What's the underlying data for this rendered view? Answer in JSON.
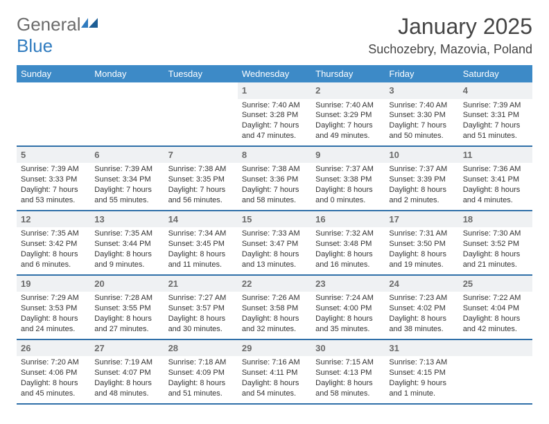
{
  "logo": {
    "general": "General",
    "blue": "Blue"
  },
  "title": "January 2025",
  "location": "Suchozebry, Mazovia, Poland",
  "colors": {
    "header_bg": "#3d8ac7",
    "header_fg": "#ffffff",
    "rule": "#2f6fa8",
    "daynum_bg": "#eff1f3",
    "daynum_fg": "#6a6a6a",
    "text": "#333333",
    "logo_gray": "#6b6b6b",
    "logo_blue": "#2f7bbf"
  },
  "weekdays": [
    "Sunday",
    "Monday",
    "Tuesday",
    "Wednesday",
    "Thursday",
    "Friday",
    "Saturday"
  ],
  "weeks": [
    [
      null,
      null,
      null,
      {
        "n": "1",
        "sunrise": "7:40 AM",
        "sunset": "3:28 PM",
        "daylight": "7 hours and 47 minutes."
      },
      {
        "n": "2",
        "sunrise": "7:40 AM",
        "sunset": "3:29 PM",
        "daylight": "7 hours and 49 minutes."
      },
      {
        "n": "3",
        "sunrise": "7:40 AM",
        "sunset": "3:30 PM",
        "daylight": "7 hours and 50 minutes."
      },
      {
        "n": "4",
        "sunrise": "7:39 AM",
        "sunset": "3:31 PM",
        "daylight": "7 hours and 51 minutes."
      }
    ],
    [
      {
        "n": "5",
        "sunrise": "7:39 AM",
        "sunset": "3:33 PM",
        "daylight": "7 hours and 53 minutes."
      },
      {
        "n": "6",
        "sunrise": "7:39 AM",
        "sunset": "3:34 PM",
        "daylight": "7 hours and 55 minutes."
      },
      {
        "n": "7",
        "sunrise": "7:38 AM",
        "sunset": "3:35 PM",
        "daylight": "7 hours and 56 minutes."
      },
      {
        "n": "8",
        "sunrise": "7:38 AM",
        "sunset": "3:36 PM",
        "daylight": "7 hours and 58 minutes."
      },
      {
        "n": "9",
        "sunrise": "7:37 AM",
        "sunset": "3:38 PM",
        "daylight": "8 hours and 0 minutes."
      },
      {
        "n": "10",
        "sunrise": "7:37 AM",
        "sunset": "3:39 PM",
        "daylight": "8 hours and 2 minutes."
      },
      {
        "n": "11",
        "sunrise": "7:36 AM",
        "sunset": "3:41 PM",
        "daylight": "8 hours and 4 minutes."
      }
    ],
    [
      {
        "n": "12",
        "sunrise": "7:35 AM",
        "sunset": "3:42 PM",
        "daylight": "8 hours and 6 minutes."
      },
      {
        "n": "13",
        "sunrise": "7:35 AM",
        "sunset": "3:44 PM",
        "daylight": "8 hours and 9 minutes."
      },
      {
        "n": "14",
        "sunrise": "7:34 AM",
        "sunset": "3:45 PM",
        "daylight": "8 hours and 11 minutes."
      },
      {
        "n": "15",
        "sunrise": "7:33 AM",
        "sunset": "3:47 PM",
        "daylight": "8 hours and 13 minutes."
      },
      {
        "n": "16",
        "sunrise": "7:32 AM",
        "sunset": "3:48 PM",
        "daylight": "8 hours and 16 minutes."
      },
      {
        "n": "17",
        "sunrise": "7:31 AM",
        "sunset": "3:50 PM",
        "daylight": "8 hours and 19 minutes."
      },
      {
        "n": "18",
        "sunrise": "7:30 AM",
        "sunset": "3:52 PM",
        "daylight": "8 hours and 21 minutes."
      }
    ],
    [
      {
        "n": "19",
        "sunrise": "7:29 AM",
        "sunset": "3:53 PM",
        "daylight": "8 hours and 24 minutes."
      },
      {
        "n": "20",
        "sunrise": "7:28 AM",
        "sunset": "3:55 PM",
        "daylight": "8 hours and 27 minutes."
      },
      {
        "n": "21",
        "sunrise": "7:27 AM",
        "sunset": "3:57 PM",
        "daylight": "8 hours and 30 minutes."
      },
      {
        "n": "22",
        "sunrise": "7:26 AM",
        "sunset": "3:58 PM",
        "daylight": "8 hours and 32 minutes."
      },
      {
        "n": "23",
        "sunrise": "7:24 AM",
        "sunset": "4:00 PM",
        "daylight": "8 hours and 35 minutes."
      },
      {
        "n": "24",
        "sunrise": "7:23 AM",
        "sunset": "4:02 PM",
        "daylight": "8 hours and 38 minutes."
      },
      {
        "n": "25",
        "sunrise": "7:22 AM",
        "sunset": "4:04 PM",
        "daylight": "8 hours and 42 minutes."
      }
    ],
    [
      {
        "n": "26",
        "sunrise": "7:20 AM",
        "sunset": "4:06 PM",
        "daylight": "8 hours and 45 minutes."
      },
      {
        "n": "27",
        "sunrise": "7:19 AM",
        "sunset": "4:07 PM",
        "daylight": "8 hours and 48 minutes."
      },
      {
        "n": "28",
        "sunrise": "7:18 AM",
        "sunset": "4:09 PM",
        "daylight": "8 hours and 51 minutes."
      },
      {
        "n": "29",
        "sunrise": "7:16 AM",
        "sunset": "4:11 PM",
        "daylight": "8 hours and 54 minutes."
      },
      {
        "n": "30",
        "sunrise": "7:15 AM",
        "sunset": "4:13 PM",
        "daylight": "8 hours and 58 minutes."
      },
      {
        "n": "31",
        "sunrise": "7:13 AM",
        "sunset": "4:15 PM",
        "daylight": "9 hours and 1 minute."
      },
      null
    ]
  ],
  "labels": {
    "sunrise": "Sunrise:",
    "sunset": "Sunset:",
    "daylight": "Daylight:"
  }
}
